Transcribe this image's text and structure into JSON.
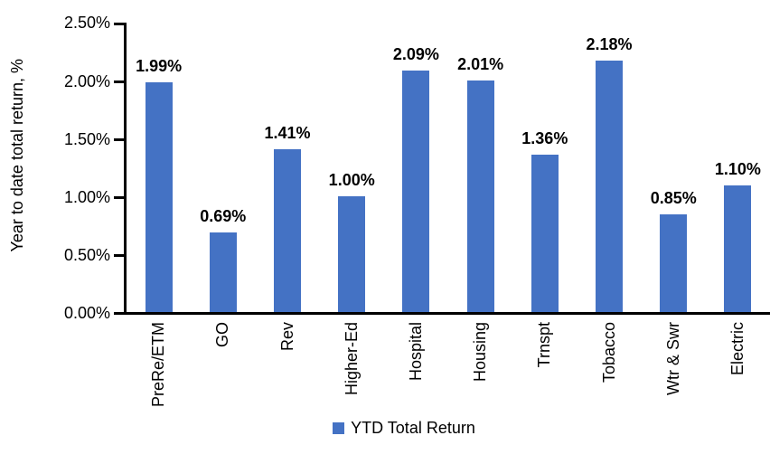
{
  "chart_data": {
    "type": "bar",
    "title": "",
    "ylabel": "Year to date total return, %",
    "xlabel": "",
    "categories": [
      "PreRe/ETM",
      "GO",
      "Rev",
      "Higher-Ed",
      "Hospital",
      "Housing",
      "Trnspt",
      "Tobacco",
      "Wtr & Swr",
      "Electric"
    ],
    "values": [
      1.99,
      0.69,
      1.41,
      1.0,
      2.09,
      2.01,
      1.36,
      2.18,
      0.85,
      1.1
    ],
    "value_labels": [
      "1.99%",
      "0.69%",
      "1.41%",
      "1.00%",
      "2.09%",
      "2.01%",
      "1.36%",
      "2.18%",
      "0.85%",
      "1.10%"
    ],
    "yticks": [
      "2.50%",
      "2.00%",
      "1.50%",
      "1.00%",
      "0.50%",
      "0.00%"
    ],
    "ylim": [
      0,
      2.5
    ],
    "grid": false,
    "bar_color": "#4472C4",
    "legend": {
      "label": "YTD Total Return",
      "position": "bottom"
    }
  }
}
